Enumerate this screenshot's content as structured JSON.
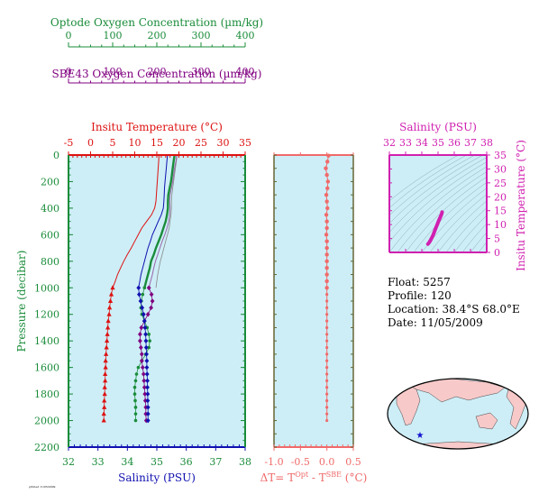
{
  "colors": {
    "optode": "#1a8c3a",
    "sbe43": "#800080",
    "temperature": "#dd1111",
    "salinity": "#1010b0",
    "delta": "#f06a6a",
    "ts": "#d020b0",
    "panel_bg": "#cdeef7",
    "land": "#f7c9c9",
    "ocean": "#cdeef7"
  },
  "header_axes": {
    "optode": {
      "title": "Optode Oxygen Concentration (µm/kg)",
      "ticks": [
        "0",
        "100",
        "200",
        "300",
        "400"
      ]
    },
    "sbe43": {
      "title": "SBE43 Oxygen Concentration (µm/kg)",
      "ticks": [
        "0",
        "100",
        "200",
        "300",
        "400"
      ]
    }
  },
  "info": {
    "float": "Float:  5257",
    "profile": "Profile:  120",
    "location": "Location:  38.4°S  68.0°E",
    "date": "Date:  11/05/2009"
  },
  "footnote": "printed 11/05/2009",
  "chart_data": [
    {
      "type": "line",
      "name": "profile",
      "ylabel": "Pressure (decibar)",
      "ylim": [
        2200,
        0
      ],
      "y_ticks": [
        "0",
        "200",
        "400",
        "600",
        "800",
        "1000",
        "1200",
        "1400",
        "1600",
        "1800",
        "2000",
        "2200"
      ],
      "axes": {
        "temperature": {
          "title": "Insitu Temperature (°C)",
          "range": [
            -5,
            35
          ],
          "ticks": [
            "-5",
            "0",
            "5",
            "10",
            "15",
            "20",
            "25",
            "30",
            "35"
          ]
        },
        "salinity": {
          "title": "Salinity (PSU)",
          "range": [
            32,
            38
          ],
          "ticks": [
            "32",
            "33",
            "34",
            "35",
            "36",
            "37",
            "38"
          ]
        },
        "oxygen": {
          "range": [
            0,
            400
          ]
        }
      },
      "pressure": [
        5,
        50,
        100,
        150,
        200,
        250,
        300,
        350,
        400,
        450,
        500,
        550,
        600,
        650,
        700,
        750,
        800,
        850,
        900,
        950,
        1000,
        1050,
        1100,
        1150,
        1200,
        1250,
        1300,
        1350,
        1400,
        1450,
        1500,
        1550,
        1600,
        1650,
        1700,
        1750,
        1800,
        1850,
        1900,
        1950,
        2000
      ],
      "temperature_line": [
        15.5,
        15.4,
        15.3,
        15.2,
        15.1,
        15.0,
        14.9,
        14.8,
        14.5,
        13.8,
        12.7,
        11.6,
        10.8,
        10.0,
        9.2,
        8.3,
        7.5,
        6.8,
        6.1,
        5.6,
        5.0
      ],
      "temperature_points": [
        5.0,
        4.7,
        4.5,
        4.3,
        4.2,
        4.0,
        3.9,
        3.8,
        3.7,
        3.6,
        3.5,
        3.4,
        3.4,
        3.3,
        3.3,
        3.2,
        3.2,
        3.1,
        3.1,
        3.0,
        3.0
      ],
      "salinity_line": [
        35.36,
        35.34,
        35.32,
        35.3,
        35.28,
        35.26,
        35.25,
        35.24,
        35.22,
        35.15,
        35.05,
        34.95,
        34.85,
        34.78,
        34.7,
        34.64,
        34.58,
        34.52,
        34.46,
        34.42,
        34.38
      ],
      "salinity_points": [
        34.38,
        34.4,
        34.45,
        34.5,
        34.55,
        34.58,
        34.6,
        34.62,
        34.63,
        34.64,
        34.65,
        34.66,
        34.66,
        34.67,
        34.68,
        34.68,
        34.69,
        34.69,
        34.7,
        34.7,
        34.7
      ],
      "optode_line": [
        240,
        238,
        236,
        234,
        232,
        229,
        226,
        225,
        225,
        223,
        220,
        215,
        210,
        204,
        198,
        193,
        187,
        184,
        180,
        176,
        172
      ],
      "optode_points": [
        172,
        168,
        165,
        164,
        166,
        172,
        178,
        182,
        184,
        182,
        175,
        166,
        158,
        154,
        152,
        150,
        150,
        151,
        152,
        152,
        152
      ],
      "sbe43_line": [
        245,
        243,
        240,
        238,
        236,
        233,
        230,
        229,
        230,
        229,
        227,
        223,
        218,
        212,
        207,
        202,
        197,
        193,
        190,
        186,
        182
      ],
      "sbe43_points": [
        182,
        188,
        190,
        187,
        180,
        172,
        165,
        162,
        162,
        164,
        166,
        166,
        168,
        170,
        171,
        172,
        173,
        174,
        175,
        175,
        176
      ],
      "thin_oxygen_line": [
        246,
        244,
        242,
        240,
        238,
        236,
        234,
        233,
        233,
        232,
        230,
        228,
        224,
        220,
        216,
        212,
        208,
        205,
        202,
        200,
        198
      ]
    },
    {
      "type": "scatter",
      "name": "delta_temperature",
      "xlabel": "ΔT= T^Opt - T^SBE (°C)",
      "xlim": [
        -1.0,
        0.5
      ],
      "x_ticks": [
        "-1.0",
        "-0.5",
        "0.0",
        "0.5"
      ],
      "values": [
        0.03,
        0.01,
        -0.02,
        0.0,
        0.02,
        0.01,
        -0.01,
        0.0,
        0.01,
        -0.01,
        0.0,
        0.0,
        -0.01,
        0.0,
        0.0,
        0.0,
        0.0,
        0.0,
        0.0,
        0.0,
        0.0,
        0.0,
        0.0,
        0.0,
        0.0,
        0.0,
        0.0,
        0.0,
        0.0,
        0.0,
        0.0,
        0.0,
        0.0,
        0.0,
        0.0,
        0.0,
        0.0,
        0.0,
        0.0,
        0.0,
        0.0
      ]
    },
    {
      "type": "line",
      "name": "ts_diagram",
      "xlabel": "Salinity (PSU)",
      "ylabel": "Insitu Temperature (°C)",
      "xlim": [
        32,
        38
      ],
      "ylim": [
        0,
        35
      ],
      "x_ticks": [
        "32",
        "33",
        "34",
        "35",
        "36",
        "37",
        "38"
      ],
      "y_ticks": [
        "0",
        "5",
        "10",
        "15",
        "20",
        "25",
        "30",
        "35"
      ],
      "salinity": [
        34.38,
        34.42,
        34.48,
        34.55,
        34.62,
        34.7,
        34.78,
        34.85,
        34.95,
        35.05,
        35.15,
        35.22,
        35.25
      ],
      "temperature": [
        3.0,
        3.3,
        3.8,
        4.5,
        5.3,
        6.3,
        7.5,
        8.6,
        10.0,
        11.5,
        12.8,
        13.8,
        14.5
      ]
    }
  ]
}
